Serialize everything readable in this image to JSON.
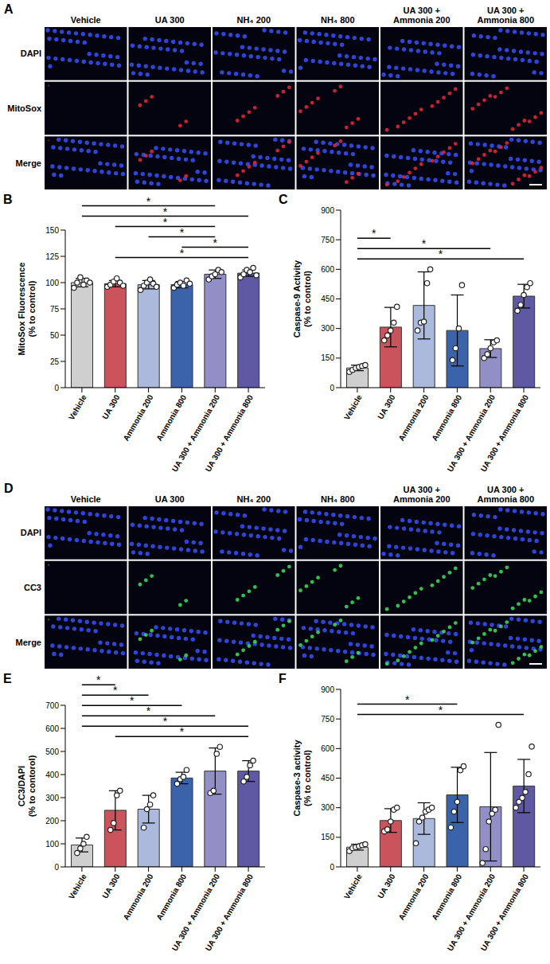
{
  "image_panels": [
    {
      "panel": "A",
      "columns": [
        "Vehicle",
        "UA 300",
        "NH₄ 200",
        "NH₄ 800",
        "UA 300 + Ammonia 200",
        "UA 300 + Ammonia 800"
      ],
      "rows": [
        "DAPI",
        "MitoSox",
        "Merge"
      ],
      "color": "#e8283a"
    },
    {
      "panel": "D",
      "columns": [
        "Vehicle",
        "UA 300",
        "NH₄ 200",
        "NH₄ 800",
        "UA 300 + Ammonia 200",
        "UA 300 + Ammonia 800"
      ],
      "rows": [
        "DAPI",
        "CC3",
        "Merge"
      ],
      "color": "#3ee05a"
    }
  ],
  "chart_data": [
    {
      "type": "bar",
      "panel": "B",
      "y_label": "MitoSox Fluorescence (% to control)",
      "categories": [
        "Vehicle",
        "UA 300",
        "Ammonia 200",
        "Ammonia 800",
        "UA 300 + Ammonia 200",
        "UA 300 + Ammonia 800"
      ],
      "values": [
        100,
        99,
        98,
        98,
        108,
        109
      ],
      "errors": [
        4,
        3,
        4,
        3,
        4,
        3
      ],
      "points": [
        [
          95,
          100,
          105,
          98,
          102,
          100
        ],
        [
          96,
          98,
          101,
          104,
          100,
          97
        ],
        [
          93,
          97,
          100,
          103,
          99,
          96
        ],
        [
          95,
          98,
          100,
          97,
          102,
          99
        ],
        [
          103,
          106,
          108,
          112,
          110
        ],
        [
          105,
          108,
          112,
          110,
          114,
          107
        ]
      ],
      "colors": [
        "#cfcfcf",
        "#c9545c",
        "#aab9dc",
        "#3b63a9",
        "#918fc6",
        "#5f59a3"
      ],
      "ylim": [
        0,
        150
      ],
      "yticks": [
        0,
        25,
        50,
        75,
        100,
        125,
        150
      ],
      "comparisons": [
        {
          "from": "Vehicle",
          "to": "UA 300 + Ammonia 200",
          "label": "*"
        },
        {
          "from": "Vehicle",
          "to": "UA 300 + Ammonia 800",
          "label": "*"
        },
        {
          "from": "UA 300",
          "to": "UA 300 + Ammonia 200",
          "label": "*"
        },
        {
          "from": "Ammonia 200",
          "to": "UA 300 + Ammonia 200",
          "label": "*"
        },
        {
          "from": "Ammonia 800",
          "to": "UA 300 + Ammonia 800",
          "label": "*"
        },
        {
          "from": "UA 300",
          "to": "UA 300 + Ammonia 800",
          "label": "*"
        }
      ]
    },
    {
      "type": "bar",
      "panel": "C",
      "y_label": "Caspase-9 Activity (% to control)",
      "categories": [
        "Vehicle",
        "UA 300",
        "Ammonia 200",
        "Ammonia 800",
        "UA 300 + Ammonia 200",
        "UA 300 + Ammonia 800"
      ],
      "values": [
        100,
        307,
        417,
        290,
        198,
        464
      ],
      "errors": [
        14,
        100,
        170,
        180,
        45,
        60
      ],
      "points": [
        [
          80,
          90,
          100,
          105,
          110,
          115
        ],
        [
          240,
          265,
          290,
          330,
          410
        ],
        [
          290,
          330,
          335,
          530,
          600
        ],
        [
          140,
          200,
          300,
          520
        ],
        [
          150,
          170,
          200,
          230,
          240
        ],
        [
          390,
          420,
          470,
          510,
          530
        ]
      ],
      "colors": [
        "#cfcfcf",
        "#c9545c",
        "#aab9dc",
        "#3b63a9",
        "#918fc6",
        "#5f59a3"
      ],
      "ylim": [
        0,
        900
      ],
      "yticks": [
        0,
        150,
        300,
        450,
        600,
        750,
        900
      ],
      "comparisons": [
        {
          "from": "Vehicle",
          "to": "UA 300",
          "label": "*"
        },
        {
          "from": "Vehicle",
          "to": "UA 300 + Ammonia 200",
          "label": "*"
        },
        {
          "from": "Vehicle",
          "to": "UA 300 + Ammonia 800",
          "label": "*"
        }
      ]
    },
    {
      "type": "bar",
      "panel": "E",
      "y_label": "CC3/DAPI (% to contorol)",
      "categories": [
        "Vehicle",
        "UA 300",
        "Ammonia 200",
        "Ammonia 800",
        "UA 300 + Ammonia 200",
        "UA 300 + Ammonia 800"
      ],
      "values": [
        95,
        245,
        250,
        385,
        415,
        415
      ],
      "errors": [
        30,
        85,
        60,
        25,
        100,
        45
      ],
      "points": [
        [
          60,
          80,
          100,
          130
        ],
        [
          160,
          190,
          310,
          330
        ],
        [
          170,
          250,
          270,
          310
        ],
        [
          360,
          380,
          390,
          420
        ],
        [
          320,
          330,
          490,
          520
        ],
        [
          370,
          390,
          440,
          460
        ]
      ],
      "colors": [
        "#cfcfcf",
        "#c9545c",
        "#aab9dc",
        "#3b63a9",
        "#918fc6",
        "#5f59a3"
      ],
      "ylim": [
        0,
        700
      ],
      "yticks": [
        0,
        100,
        200,
        300,
        400,
        500,
        600,
        700
      ],
      "comparisons": [
        {
          "from": "Vehicle",
          "to": "UA 300",
          "label": "*"
        },
        {
          "from": "Vehicle",
          "to": "Ammonia 200",
          "label": "*"
        },
        {
          "from": "Vehicle",
          "to": "Ammonia 800",
          "label": "*"
        },
        {
          "from": "Vehicle",
          "to": "UA 300 + Ammonia 200",
          "label": "*"
        },
        {
          "from": "Vehicle",
          "to": "UA 300 + Ammonia 800",
          "label": "*"
        },
        {
          "from": "UA 300",
          "to": "UA 300 + Ammonia 800",
          "label": "*"
        }
      ]
    },
    {
      "type": "bar",
      "panel": "F",
      "y_label": "Caspase-3 activity (% to control)",
      "categories": [
        "Vehicle",
        "UA 300",
        "Ammonia 200",
        "Ammonia 800",
        "UA 300 + Ammonia 200",
        "UA 300 + Ammonia 800"
      ],
      "values": [
        100,
        235,
        245,
        365,
        305,
        410
      ],
      "errors": [
        15,
        60,
        80,
        140,
        275,
        135
      ],
      "points": [
        [
          80,
          95,
          100,
          105,
          110,
          115
        ],
        [
          180,
          190,
          230,
          290,
          300
        ],
        [
          120,
          230,
          250,
          280,
          290,
          300
        ],
        [
          200,
          280,
          330,
          490,
          510
        ],
        [
          20,
          90,
          230,
          270,
          290,
          720
        ],
        [
          300,
          330,
          350,
          380,
          470,
          610
        ]
      ],
      "colors": [
        "#cfcfcf",
        "#c9545c",
        "#aab9dc",
        "#3b63a9",
        "#918fc6",
        "#5f59a3"
      ],
      "ylim": [
        0,
        900
      ],
      "yticks": [
        0,
        150,
        300,
        450,
        600,
        750,
        900
      ],
      "comparisons": [
        {
          "from": "Vehicle",
          "to": "Ammonia 800",
          "label": "*"
        },
        {
          "from": "Vehicle",
          "to": "UA 300 + Ammonia 800",
          "label": "*"
        }
      ]
    }
  ]
}
